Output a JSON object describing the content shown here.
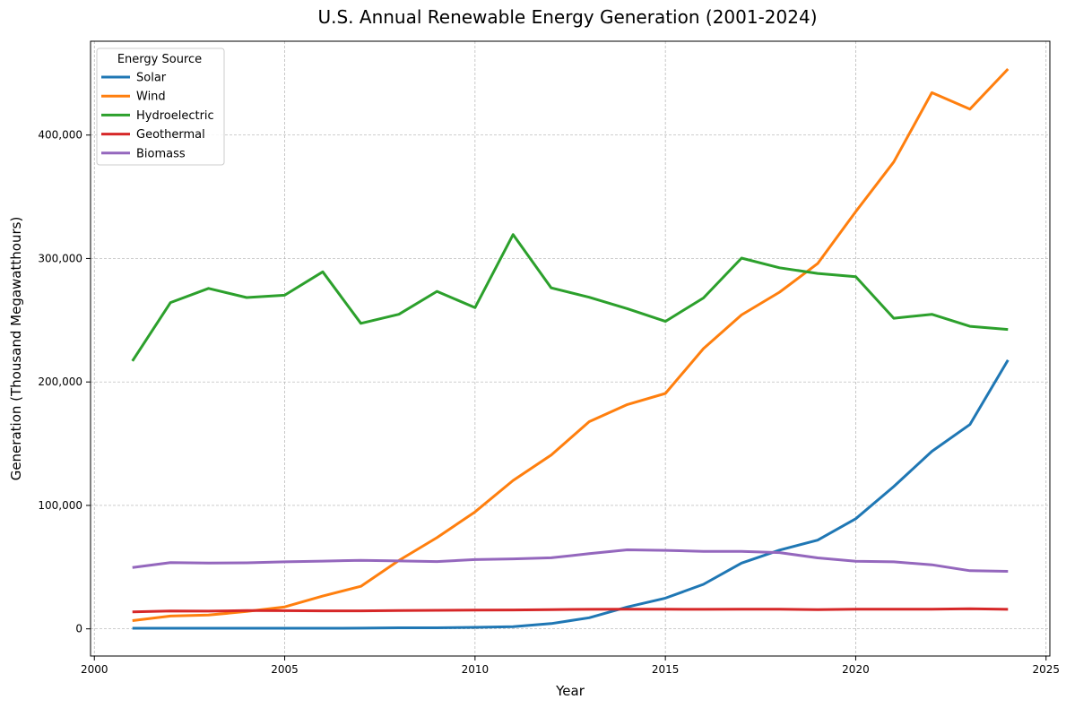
{
  "chart_data": {
    "type": "line",
    "title": "U.S. Annual Renewable Energy Generation (2001-2024)",
    "xlabel": "Year",
    "ylabel": "Generation (Thousand Megawatthours)",
    "xlim": [
      1999.9,
      2025.1
    ],
    "ylim": [
      -22000,
      476000
    ],
    "x_ticks": [
      2000,
      2005,
      2010,
      2015,
      2020,
      2025
    ],
    "y_ticks": [
      0,
      100000,
      200000,
      300000,
      400000
    ],
    "y_tick_labels": [
      "0",
      "100,000",
      "200,000",
      "300,000",
      "400,000"
    ],
    "grid": true,
    "legend_title": "Energy Source",
    "legend_position": "top-left",
    "x": [
      2001,
      2002,
      2003,
      2004,
      2005,
      2006,
      2007,
      2008,
      2009,
      2010,
      2011,
      2012,
      2013,
      2014,
      2015,
      2016,
      2017,
      2018,
      2019,
      2020,
      2021,
      2022,
      2023,
      2024
    ],
    "series": [
      {
        "name": "Solar",
        "color": "#1f77b4",
        "values": [
          500,
          500,
          500,
          500,
          500,
          500,
          600,
          900,
          900,
          1200,
          1800,
          4300,
          9000,
          17700,
          24900,
          36100,
          53300,
          63800,
          71900,
          89200,
          115300,
          143800,
          165500,
          217800
        ]
      },
      {
        "name": "Wind",
        "color": "#ff7f0e",
        "values": [
          6700,
          10400,
          11200,
          14100,
          17800,
          26600,
          34500,
          55400,
          73900,
          94700,
          120200,
          140800,
          167800,
          181700,
          190700,
          227000,
          254300,
          272700,
          295900,
          338000,
          378200,
          434300,
          421000,
          453500
        ]
      },
      {
        "name": "Hydroelectric",
        "color": "#2ca02c",
        "values": [
          217000,
          264300,
          275800,
          268400,
          270300,
          289200,
          247500,
          254800,
          273400,
          260200,
          319400,
          276200,
          268600,
          259400,
          249100,
          268000,
          300300,
          292500,
          287900,
          285300,
          251600,
          254800,
          245100,
          242500
        ]
      },
      {
        "name": "Geothermal",
        "color": "#d62728",
        "values": [
          13700,
          14500,
          14400,
          14800,
          14700,
          14600,
          14600,
          14900,
          15000,
          15200,
          15300,
          15600,
          15800,
          15900,
          15900,
          15800,
          15900,
          15900,
          15500,
          15900,
          15900,
          16000,
          16300,
          15800
        ]
      },
      {
        "name": "Biomass",
        "color": "#9467bd",
        "values": [
          49700,
          53700,
          53300,
          53500,
          54300,
          54900,
          55500,
          55000,
          54500,
          56100,
          56700,
          57600,
          60900,
          64000,
          63600,
          62800,
          62800,
          61800,
          57500,
          54700,
          54300,
          51900,
          47100,
          46600
        ]
      }
    ]
  }
}
